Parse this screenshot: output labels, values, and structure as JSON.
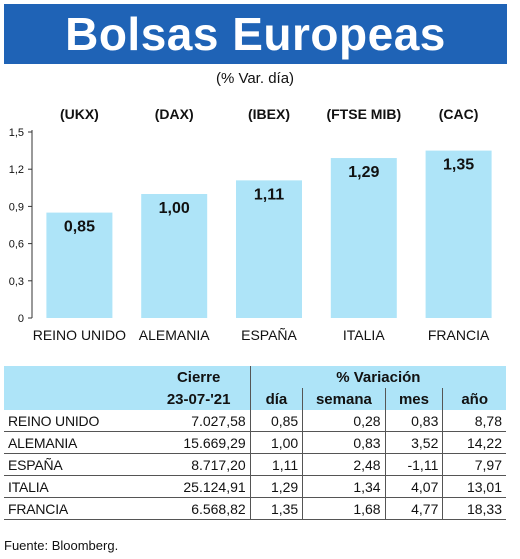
{
  "title": "Bolsas Europeas",
  "subtitle": "(% Var. día)",
  "chart_data": {
    "type": "bar",
    "codes": [
      "(UKX)",
      "(DAX)",
      "(IBEX)",
      "(FTSE MIB)",
      "(CAC)"
    ],
    "categories": [
      "REINO UNIDO",
      "ALEMANIA",
      "ESPAÑA",
      "ITALIA",
      "FRANCIA"
    ],
    "values": [
      0.85,
      1.0,
      1.11,
      1.29,
      1.35
    ],
    "value_labels": [
      "0,85",
      "1,00",
      "1,11",
      "1,29",
      "1,35"
    ],
    "yticks": [
      "0",
      "0,3",
      "0,6",
      "0,9",
      "1,2",
      "1,5"
    ],
    "ylim": [
      0,
      1.5
    ],
    "bar_color": "#aee4f8"
  },
  "table": {
    "header_cierre": "Cierre",
    "header_variacion": "% Variación",
    "date": "23-07-'21",
    "col_dia": "día",
    "col_semana": "semana",
    "col_mes": "mes",
    "col_ano": "año",
    "rows": [
      {
        "name": "REINO UNIDO",
        "cierre": "7.027,58",
        "dia": "0,85",
        "semana": "0,28",
        "mes": "0,83",
        "ano": "8,78"
      },
      {
        "name": "ALEMANIA",
        "cierre": "15.669,29",
        "dia": "1,00",
        "semana": "0,83",
        "mes": "3,52",
        "ano": "14,22"
      },
      {
        "name": "ESPAÑA",
        "cierre": "8.717,20",
        "dia": "1,11",
        "semana": "2,48",
        "mes": "-1,11",
        "ano": "7,97"
      },
      {
        "name": "ITALIA",
        "cierre": "25.124,91",
        "dia": "1,29",
        "semana": "1,34",
        "mes": "4,07",
        "ano": "13,01"
      },
      {
        "name": "FRANCIA",
        "cierre": "6.568,82",
        "dia": "1,35",
        "semana": "1,68",
        "mes": "4,77",
        "ano": "18,33"
      }
    ]
  },
  "source": "Fuente: Bloomberg."
}
